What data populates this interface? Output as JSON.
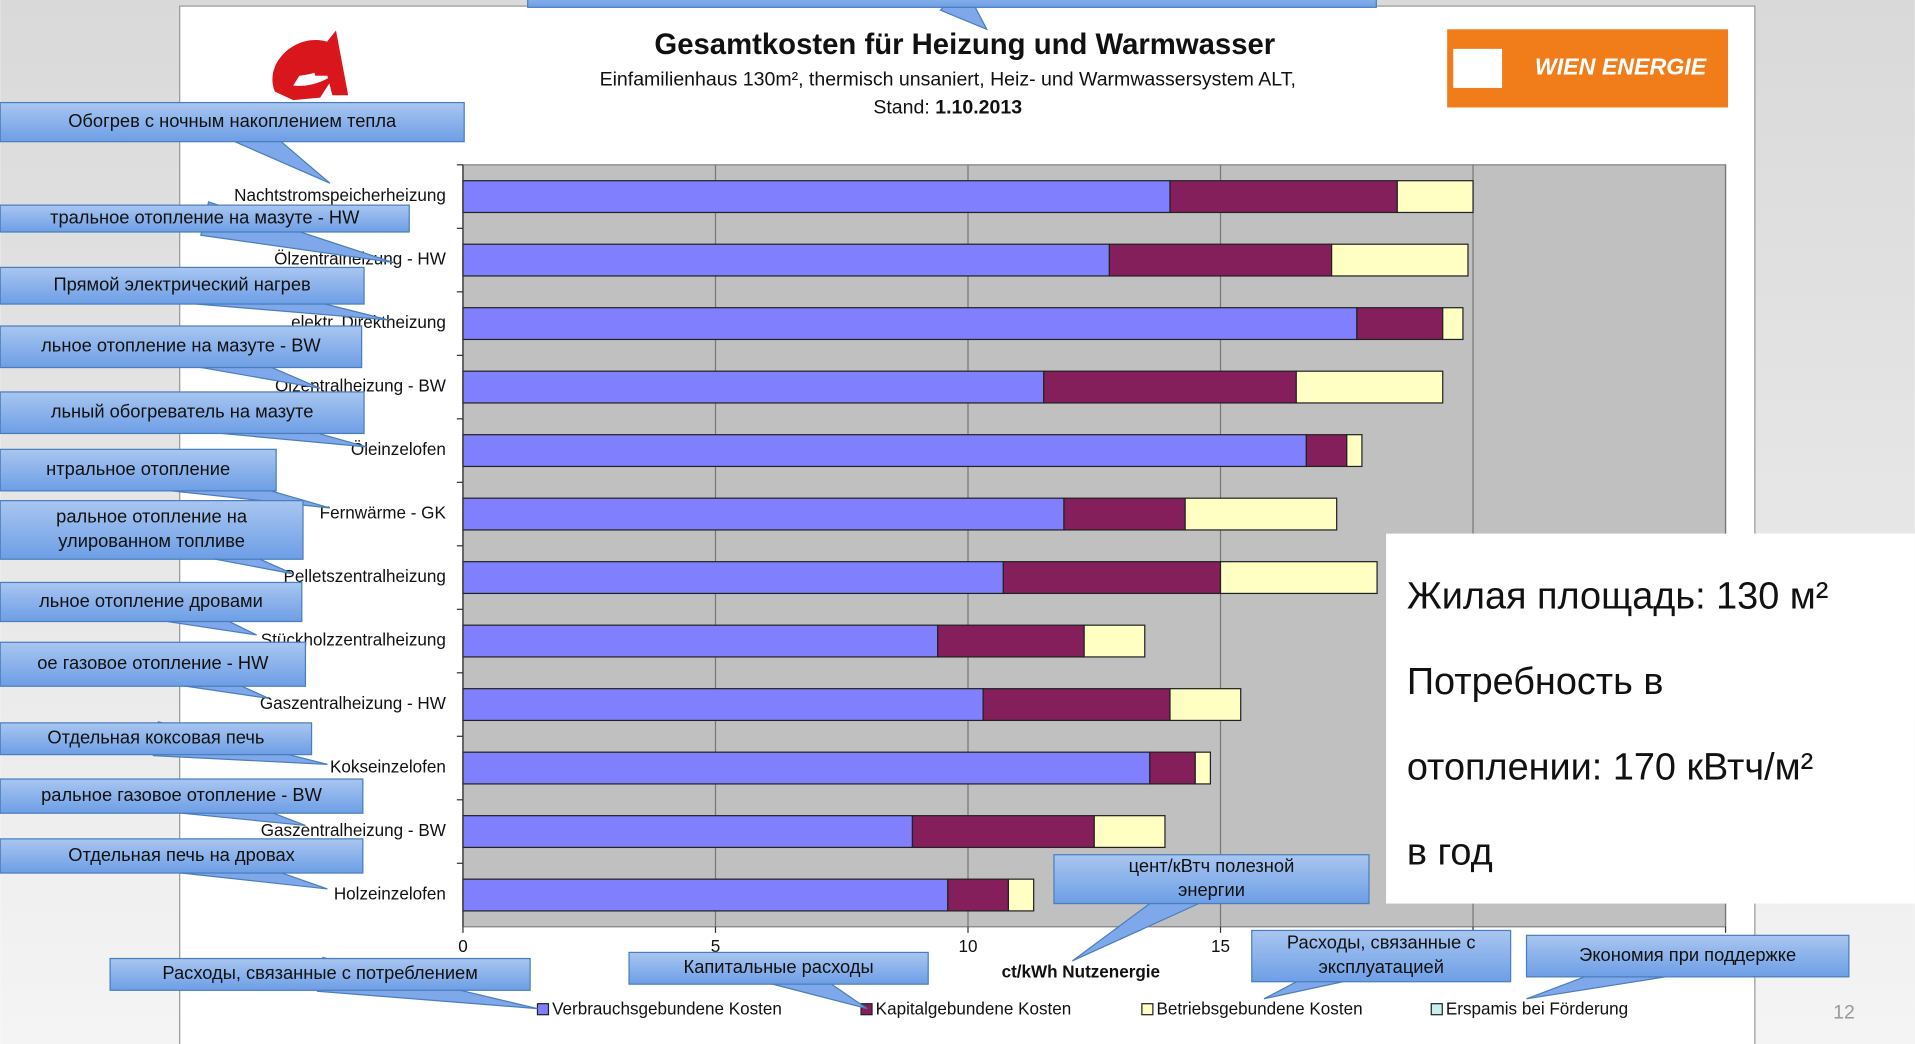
{
  "chart_data": {
    "type": "stacked-barh",
    "title": "Gesamtkosten für Heizung und Warmwasser",
    "subtitle": "Einfamilienhaus 130m², thermisch unsaniert, Heiz- und Warmwassersystem ALT,",
    "stand_label": "Stand:",
    "stand_date": "1.10.2013",
    "xlabel": "ct/kWh Nutzenergie",
    "categories": [
      "Nachtstromspeicherheizung",
      "Ölzentralheizung - HW",
      "elektr. Direktheizung",
      "Ölzentralheizung - BW",
      "Öleinzelofen",
      "Fernwärme - GK",
      "Pelletszentralheizung",
      "Stückholzzentralheizung",
      "Gaszentralheizung - HW",
      "Kokseinzelofen",
      "Gaszentralheizung - BW",
      "Holzeinzelofen"
    ],
    "series": [
      {
        "name": "Verbrauchsgebundene Kosten",
        "color": "#8080ff",
        "values": [
          14.0,
          12.8,
          17.7,
          11.5,
          16.7,
          11.9,
          10.7,
          9.4,
          10.3,
          13.6,
          8.9,
          9.6
        ]
      },
      {
        "name": "Kapitalgebundene Kosten",
        "color": "#841f5c",
        "values": [
          4.5,
          4.4,
          1.7,
          5.0,
          0.8,
          2.4,
          4.3,
          2.9,
          3.7,
          0.9,
          3.6,
          1.2
        ]
      },
      {
        "name": "Betriebsgebundene Kosten",
        "color": "#ffffc4",
        "values": [
          1.5,
          2.7,
          0.4,
          2.9,
          0.3,
          3.0,
          3.1,
          1.2,
          1.4,
          0.3,
          1.4,
          0.5
        ]
      },
      {
        "name": "Erspamis bei Förderung",
        "color": "#c8f0ec",
        "values": [
          0,
          0,
          0,
          0,
          0,
          0,
          0,
          0,
          0,
          0,
          0,
          0
        ]
      }
    ],
    "xlim": [
      0,
      25
    ],
    "xticks": [
      0,
      5,
      10,
      15,
      20,
      25
    ],
    "grid": true
  },
  "logo_text": "WIEN ENERGIE",
  "info_box": [
    "Жилая площадь: 130 м²",
    "Потребность в",
    "отоплении: 170 кВтч/м²",
    "в год"
  ],
  "page_number": "12",
  "callouts": [
    {
      "lines": [
        "Обогрев с ночным накоплением тепла"
      ]
    },
    {
      "lines": [
        "тральное отопление на мазуте - HW"
      ]
    },
    {
      "lines": [
        "Прямой электрический нагрев"
      ]
    },
    {
      "lines": [
        "льное отопление на мазуте - BW"
      ]
    },
    {
      "lines": [
        "льный обогреватель на мазуте"
      ]
    },
    {
      "lines": [
        "нтральное отопление"
      ]
    },
    {
      "lines": [
        "ральное отопление на",
        "улированном топливе"
      ]
    },
    {
      "lines": [
        "льное отопление дровами"
      ]
    },
    {
      "lines": [
        "ое газовое отопление - HW"
      ]
    },
    {
      "lines": [
        "Отдельная коксовая печь"
      ]
    },
    {
      "lines": [
        "ральное газовое отопление - BW"
      ]
    },
    {
      "lines": [
        "Отдельная печь на дровах"
      ]
    },
    {
      "lines": [
        "цент/кВтч полезной",
        "энергии"
      ]
    },
    {
      "lines": [
        "Расходы, связанные с потреблением"
      ]
    },
    {
      "lines": [
        "Капитальные расходы"
      ]
    },
    {
      "lines": [
        "Расходы, связанные с",
        "эксплуатацией"
      ]
    },
    {
      "lines": [
        "Экономия при поддержке"
      ]
    }
  ]
}
